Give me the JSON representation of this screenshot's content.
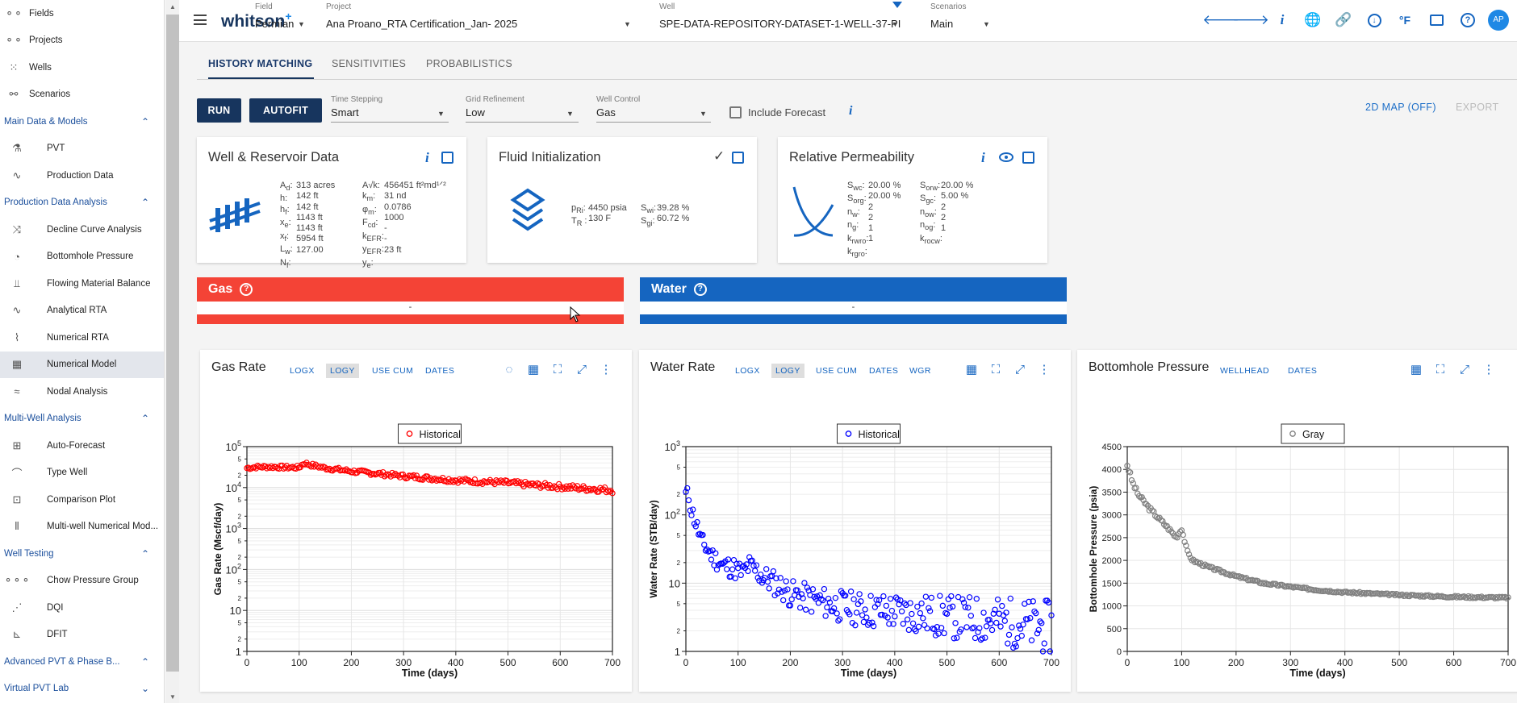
{
  "sidebar": {
    "top_items": [
      {
        "label": "Fields",
        "icon": "fields-icon"
      },
      {
        "label": "Projects",
        "icon": "projects-icon"
      },
      {
        "label": "Wells",
        "icon": "wells-icon"
      },
      {
        "label": "Scenarios",
        "icon": "scenarios-icon"
      }
    ],
    "sections": [
      {
        "title": "Main Data & Models",
        "items": [
          {
            "label": "PVT",
            "icon": "flask-icon"
          },
          {
            "label": "Production Data",
            "icon": "trend-icon"
          }
        ]
      },
      {
        "title": "Production Data Analysis",
        "items": [
          {
            "label": "Decline Curve Analysis",
            "icon": "decline-icon"
          },
          {
            "label": "Bottomhole Pressure",
            "icon": "gauge-icon"
          },
          {
            "label": "Flowing Material Balance",
            "icon": "bar-trend-icon"
          },
          {
            "label": "Analytical RTA",
            "icon": "trend-icon"
          },
          {
            "label": "Numerical RTA",
            "icon": "curve-icon"
          },
          {
            "label": "Numerical Model",
            "icon": "grid-icon",
            "active": true
          },
          {
            "label": "Nodal Analysis",
            "icon": "nodal-icon"
          }
        ]
      },
      {
        "title": "Multi-Well Analysis",
        "items": [
          {
            "label": "Auto-Forecast",
            "icon": "tiles-icon"
          },
          {
            "label": "Type Well",
            "icon": "typewell-icon"
          },
          {
            "label": "Comparison Plot",
            "icon": "comparison-icon"
          },
          {
            "label": "Multi-well Numerical Mod...",
            "icon": "columns-icon"
          }
        ]
      },
      {
        "title": "Well Testing",
        "items": [
          {
            "label": "Chow Pressure Group",
            "icon": "chain-icon"
          },
          {
            "label": "DQI",
            "icon": "share-icon"
          },
          {
            "label": "DFIT",
            "icon": "dfit-icon"
          }
        ]
      },
      {
        "title": "Advanced PVT & Phase B...",
        "items": []
      },
      {
        "title": "Virtual PVT Lab",
        "items": [],
        "collapsed": true
      }
    ]
  },
  "topbar": {
    "logo": "whitson",
    "logo_sup": "+",
    "field": {
      "label": "Field",
      "value": "Permian"
    },
    "project": {
      "label": "Project",
      "value": "Ana Proano_RTA Certification_Jan- 2025"
    },
    "well": {
      "label": "Well",
      "value": "SPE-DATA-REPOSITORY-DATASET-1-WELL-37-PI"
    },
    "scenarios": {
      "label": "Scenarios",
      "value": "Main"
    },
    "avatar": "AP",
    "icons": [
      "back-arrow-icon",
      "forward-arrow-icon",
      "info-icon",
      "globe-icon",
      "link-icon",
      "download-icon",
      "units-icon",
      "feedback-icon",
      "help-icon"
    ],
    "units_label": "°F"
  },
  "tabs": [
    "HISTORY MATCHING",
    "SENSITIVITIES",
    "PROBABILISTICS"
  ],
  "controls": {
    "run": "RUN",
    "autofit": "AUTOFIT",
    "time_stepping": {
      "label": "Time Stepping",
      "value": "Smart"
    },
    "grid_refinement": {
      "label": "Grid Refinement",
      "value": "Low"
    },
    "well_control": {
      "label": "Well Control",
      "value": "Gas"
    },
    "include_forecast": "Include Forecast",
    "map_button": "2D MAP (OFF)",
    "export_button": "EXPORT"
  },
  "cards": {
    "well_res": {
      "title": "Well & Reservoir Data",
      "col1": [
        "313 acres",
        "142 ft",
        "142 ft",
        "1143 ft",
        "1143 ft",
        "5954 ft",
        "127.00"
      ],
      "col2": [
        "456451 ft²md¹ᐟ²",
        "31 nd",
        "0.0786",
        "1000",
        "-",
        "-",
        "23 ft"
      ]
    },
    "fluid": {
      "title": "Fluid Initialization",
      "col1": [
        "4450 psia",
        "130 F"
      ],
      "col2": [
        "39.28 %",
        "60.72 %"
      ]
    },
    "relperm": {
      "title": "Relative Permeability",
      "col1": [
        "20.00 %",
        "20.00 %",
        "2",
        "2",
        "1",
        "1"
      ],
      "col2": [
        "20.00 %",
        "5.00 %",
        "2",
        "2",
        "1"
      ]
    }
  },
  "banners": {
    "gas": {
      "title": "Gas",
      "value": "-",
      "color": "#f44336"
    },
    "water": {
      "title": "Water",
      "value": "-",
      "color": "#1565c0"
    }
  },
  "charts": {
    "gas": {
      "title": "Gas Rate",
      "tabs": [
        "LOGX",
        "LOGY",
        "USE CUM",
        "DATES"
      ],
      "legend": "Historical",
      "ylabel": "Gas Rate (Mscf/day)",
      "xlabel": "Time (days)"
    },
    "water": {
      "title": "Water Rate",
      "tabs": [
        "LOGX",
        "LOGY",
        "USE CUM",
        "DATES",
        "WGR"
      ],
      "legend": "Historical",
      "ylabel": "Water Rate (STB/day)",
      "xlabel": "Time (days)"
    },
    "bhp": {
      "title": "Bottomhole Pressure",
      "tabs": [
        "WELLHEAD",
        "DATES"
      ],
      "legend": "Gray",
      "ylabel": "Bottomhole Pressure (psia)",
      "xlabel": "Time (days)"
    }
  },
  "chart_data": [
    {
      "type": "scatter",
      "title": "Gas Rate",
      "xlabel": "Time (days)",
      "ylabel": "Gas Rate (Mscf/day)",
      "xlim": [
        0,
        700
      ],
      "ylim": [
        1,
        100000
      ],
      "yscale": "log",
      "color": "#ff0000",
      "series": [
        {
          "name": "Historical",
          "x": [
            0,
            20,
            50,
            80,
            100,
            110,
            120,
            150,
            200,
            250,
            300,
            350,
            400,
            450,
            500,
            550,
            600,
            650,
            680,
            700
          ],
          "y": [
            30000,
            32000,
            32000,
            31000,
            31000,
            40000,
            36000,
            30000,
            25000,
            22000,
            19000,
            17000,
            15000,
            14000,
            13000,
            11500,
            10500,
            9500,
            9000,
            8500
          ]
        }
      ]
    },
    {
      "type": "scatter",
      "title": "Water Rate",
      "xlabel": "Time (days)",
      "ylabel": "Water Rate (STB/day)",
      "xlim": [
        0,
        700
      ],
      "ylim": [
        1,
        1000
      ],
      "yscale": "log",
      "color": "#0000ff",
      "series": [
        {
          "name": "Historical",
          "x": [
            0,
            5,
            10,
            20,
            30,
            50,
            70,
            90,
            100,
            110,
            120,
            150,
            200,
            250,
            300,
            350,
            400,
            450,
            500,
            550,
            600,
            650,
            700
          ],
          "y": [
            200,
            190,
            120,
            70,
            40,
            25,
            18,
            17,
            15,
            14,
            18,
            12,
            7,
            5.5,
            4.5,
            4,
            3.8,
            3.5,
            3.2,
            3,
            2.8,
            2.5,
            2.2
          ]
        }
      ]
    },
    {
      "type": "scatter",
      "title": "Bottomhole Pressure",
      "xlabel": "Time (days)",
      "ylabel": "Bottomhole Pressure (psia)",
      "xlim": [
        0,
        700
      ],
      "ylim": [
        0,
        4500
      ],
      "color": "#808080",
      "series": [
        {
          "name": "Gray",
          "x": [
            0,
            5,
            10,
            20,
            40,
            60,
            80,
            90,
            100,
            110,
            120,
            150,
            200,
            250,
            300,
            350,
            400,
            450,
            500,
            550,
            600,
            650,
            700
          ],
          "y": [
            4100,
            3900,
            3700,
            3450,
            3150,
            2900,
            2650,
            2500,
            2700,
            2200,
            2000,
            1850,
            1650,
            1500,
            1420,
            1350,
            1300,
            1270,
            1240,
            1220,
            1200,
            1190,
            1180
          ]
        }
      ]
    }
  ]
}
